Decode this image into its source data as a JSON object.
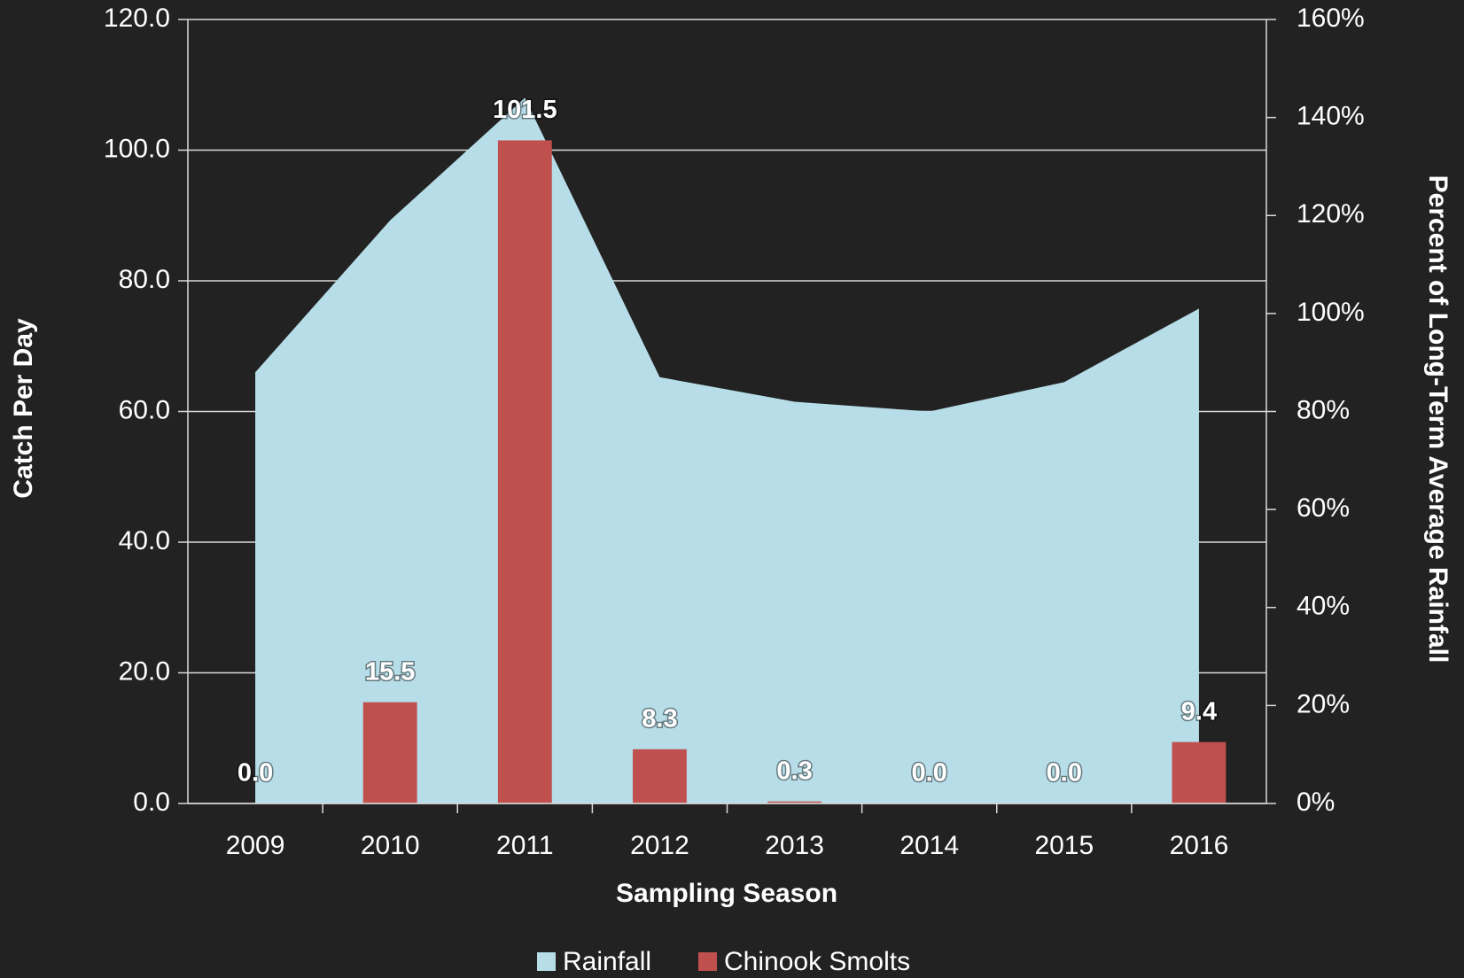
{
  "chart_data": {
    "type": "combo",
    "x_label": "Sampling Season",
    "y_label": "Catch Per Day",
    "y2_label": "Percent of Long-Term Average Rainfall",
    "categories": [
      "2009",
      "2010",
      "2011",
      "2012",
      "2013",
      "2014",
      "2015",
      "2016"
    ],
    "series": [
      {
        "name": "Rainfall",
        "type": "area",
        "axis": "y2",
        "color": "#b7dde8",
        "values": [
          88,
          119,
          144,
          87,
          82,
          80,
          86,
          101
        ]
      },
      {
        "name": "Chinook Smolts",
        "type": "bar",
        "axis": "y",
        "color": "#c0504d",
        "values": [
          0.0,
          15.5,
          101.5,
          8.3,
          0.3,
          0.0,
          0.0,
          9.4
        ],
        "value_labels": [
          "0.0",
          "15.5",
          "101.5",
          "8.3",
          "0.3",
          "0.0",
          "0.0",
          "9.4"
        ]
      }
    ],
    "ylim": [
      0,
      120
    ],
    "yticks": [
      {
        "value": 0,
        "label": "0.0"
      },
      {
        "value": 20,
        "label": "20.0"
      },
      {
        "value": 40,
        "label": "40.0"
      },
      {
        "value": 60,
        "label": "60.0"
      },
      {
        "value": 80,
        "label": "80.0"
      },
      {
        "value": 100,
        "label": "100.0"
      },
      {
        "value": 120,
        "label": "120.0"
      }
    ],
    "y2lim": [
      0,
      160
    ],
    "y2ticks": [
      {
        "value": 0,
        "label": "0%"
      },
      {
        "value": 20,
        "label": "20%"
      },
      {
        "value": 40,
        "label": "40%"
      },
      {
        "value": 60,
        "label": "60%"
      },
      {
        "value": 80,
        "label": "80%"
      },
      {
        "value": 100,
        "label": "100%"
      },
      {
        "value": 120,
        "label": "120%"
      },
      {
        "value": 140,
        "label": "140%"
      },
      {
        "value": 160,
        "label": "160%"
      }
    ],
    "grid": true,
    "legend": "bottom"
  }
}
